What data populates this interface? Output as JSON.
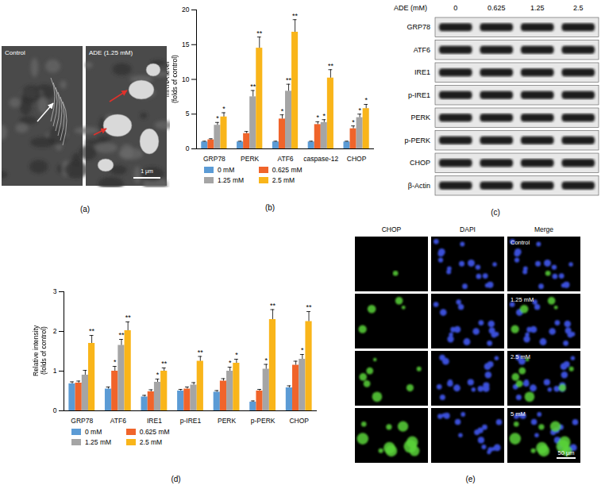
{
  "chart_data": [
    {
      "type": "bar",
      "title": "(b)",
      "ylabel": "mRNA level\n(folds of control)",
      "categories": [
        "GRP78",
        "PERK",
        "ATF6",
        "caspase-12",
        "CHOP"
      ],
      "series": [
        {
          "name": "0 mM",
          "color": "#5b9bd5",
          "values": [
            1,
            1,
            1,
            1,
            1
          ],
          "errors": [
            0.1,
            0.1,
            0.1,
            0.1,
            0.1
          ],
          "significance": [
            null,
            null,
            null,
            null,
            null
          ]
        },
        {
          "name": "0.625 mM",
          "color": "#f0642a",
          "values": [
            1.3,
            2.2,
            4.3,
            3.5,
            2.9
          ],
          "errors": [
            0.15,
            0.3,
            0.6,
            0.4,
            0.4
          ],
          "significance": [
            null,
            null,
            "*",
            "*",
            "*"
          ]
        },
        {
          "name": "1.25 mM",
          "color": "#a5a5a5",
          "values": [
            3.4,
            7.5,
            8.3,
            3.8,
            4.5
          ],
          "errors": [
            0.4,
            0.9,
            1.0,
            0.4,
            0.5
          ],
          "significance": [
            "*",
            "**",
            "**",
            "*",
            "*"
          ]
        },
        {
          "name": "2.5 mM",
          "color": "#f9b51a",
          "values": [
            4.6,
            14.5,
            16.8,
            10.2,
            5.8
          ],
          "errors": [
            0.6,
            1.6,
            1.8,
            1.2,
            0.6
          ],
          "significance": [
            "*",
            "**",
            "**",
            "**",
            "*"
          ]
        }
      ],
      "ylim": [
        0,
        20
      ],
      "yticks": [
        0,
        5,
        10,
        15,
        20
      ],
      "legend": "bottom"
    },
    {
      "type": "bar",
      "title": "(d)",
      "ylabel": "Relative intensity\n(folds of control)",
      "categories": [
        "GRP78",
        "ATF6",
        "IRE1",
        "p-IRE1",
        "PERK",
        "p-PERK",
        "CHOP"
      ],
      "series": [
        {
          "name": "0 mM",
          "color": "#5b9bd5",
          "values": [
            0.68,
            0.55,
            0.35,
            0.5,
            0.47,
            0.22,
            0.58
          ],
          "errors": [
            0.05,
            0.05,
            0.04,
            0.04,
            0.04,
            0.03,
            0.05
          ],
          "significance": [
            null,
            null,
            null,
            null,
            null,
            null,
            null
          ]
        },
        {
          "name": "0.625 mM",
          "color": "#f0642a",
          "values": [
            0.7,
            1.0,
            0.48,
            0.55,
            0.75,
            0.5,
            1.15
          ],
          "errors": [
            0.05,
            0.12,
            0.05,
            0.05,
            0.06,
            0.04,
            0.1
          ],
          "significance": [
            null,
            "*",
            null,
            null,
            null,
            null,
            null
          ]
        },
        {
          "name": "1.25 mM",
          "color": "#a5a5a5",
          "values": [
            0.9,
            1.65,
            0.72,
            0.65,
            1.0,
            1.05,
            1.3
          ],
          "errors": [
            0.12,
            0.15,
            0.08,
            0.06,
            0.1,
            0.12,
            0.12
          ],
          "significance": [
            null,
            "**",
            "*",
            null,
            "*",
            "*",
            "*"
          ]
        },
        {
          "name": "2.5 mM",
          "color": "#f9b51a",
          "values": [
            1.7,
            2.02,
            1.0,
            1.25,
            1.2,
            2.3,
            2.25
          ],
          "errors": [
            0.2,
            0.22,
            0.08,
            0.12,
            0.1,
            0.25,
            0.25
          ],
          "significance": [
            "**",
            "**",
            "**",
            "**",
            "*",
            "**",
            "**"
          ]
        }
      ],
      "ylim": [
        0,
        3
      ],
      "yticks": [
        0,
        1,
        2,
        3
      ],
      "legend": "bottom"
    }
  ],
  "tem": {
    "label": "(a)",
    "images": [
      "Control",
      "ADE (1.25 mM)"
    ],
    "scale_bar": "1 μm"
  },
  "blot": {
    "label": "(c)",
    "header": "ADE (mM)",
    "lanes": [
      0,
      0.625,
      1.25,
      2.5
    ],
    "rows": [
      "GRP78",
      "ATF6",
      "IRE1",
      "p-IRE1",
      "PERK",
      "p-PERK",
      "CHOP",
      "β-Actin"
    ]
  },
  "fluorescence": {
    "label": "(e)",
    "columns": [
      "CHOP",
      "DAPI",
      "Merge"
    ],
    "rows": [
      "Control",
      "1.25 mM",
      "2.5 mM",
      "5 mM"
    ],
    "scale_bar": "50 μm"
  }
}
